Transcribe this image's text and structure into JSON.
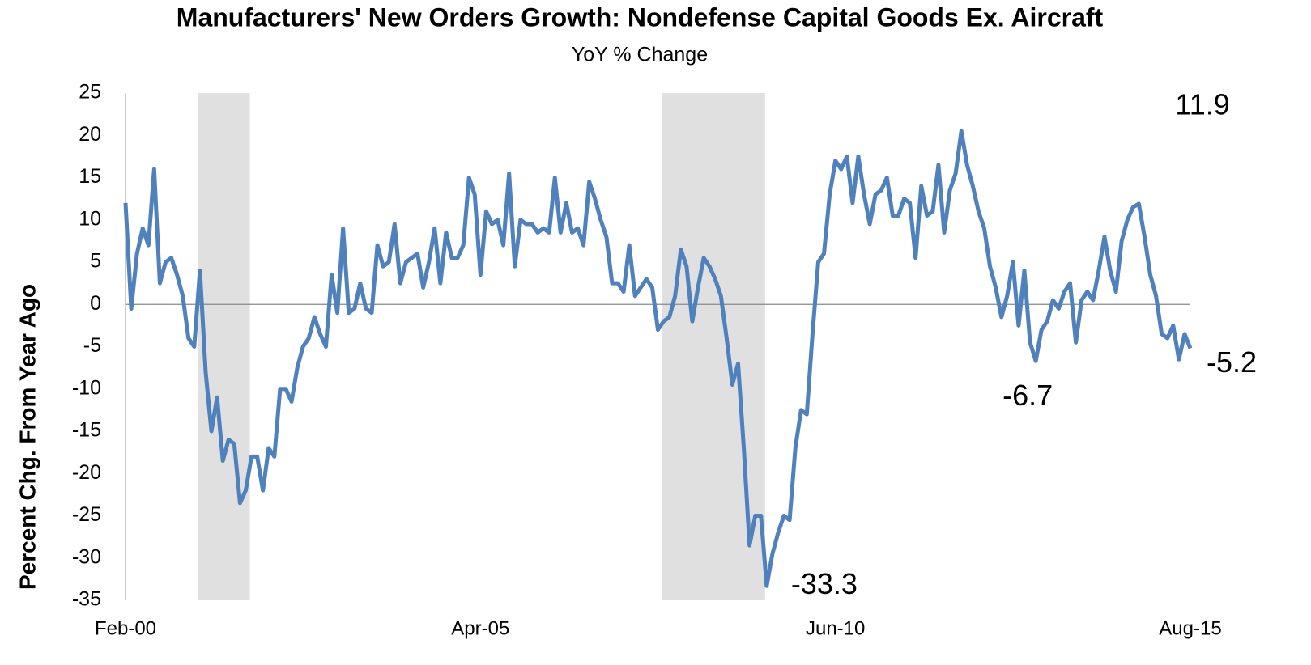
{
  "chart_data": {
    "type": "line",
    "title": "Manufacturers' New Orders Growth: Nondefense Capital Goods Ex. Aircraft",
    "subtitle": "YoY % Change",
    "y_label": "Percent Chg. From Year Ago",
    "categories": [
      "Feb-00",
      null,
      null,
      null,
      null,
      null,
      null,
      null,
      null,
      null,
      null,
      null,
      null,
      null,
      null,
      null,
      null,
      null,
      null,
      null,
      null,
      null,
      null,
      null,
      null,
      null,
      null,
      null,
      null,
      null,
      null,
      null,
      null,
      null,
      null,
      null,
      null,
      null,
      null,
      null,
      null,
      null,
      null,
      null,
      null,
      null,
      null,
      null,
      null,
      null,
      null,
      null,
      null,
      null,
      null,
      null,
      null,
      null,
      null,
      null,
      null,
      null,
      "Apr-05",
      null,
      null,
      null,
      null,
      null,
      null,
      null,
      null,
      null,
      null,
      null,
      null,
      null,
      null,
      null,
      null,
      null,
      null,
      null,
      null,
      null,
      null,
      null,
      null,
      null,
      null,
      null,
      null,
      null,
      null,
      null,
      null,
      null,
      null,
      null,
      null,
      null,
      null,
      null,
      null,
      null,
      null,
      null,
      null,
      null,
      null,
      null,
      null,
      null,
      null,
      null,
      null,
      null,
      null,
      null,
      null,
      null,
      null,
      null,
      null,
      null,
      "Jun-10",
      null,
      null,
      null,
      null,
      null,
      null,
      null,
      null,
      null,
      null,
      null,
      null,
      null,
      null,
      null,
      null,
      null,
      null,
      null,
      null,
      null,
      null,
      null,
      null,
      null,
      null,
      null,
      null,
      null,
      null,
      null,
      null,
      null,
      null,
      null,
      null,
      null,
      null,
      null,
      null,
      null,
      null,
      null,
      null,
      null,
      null,
      null,
      null,
      null,
      null,
      null,
      null,
      null,
      null,
      null,
      null,
      null,
      null,
      null,
      null,
      null,
      "Aug-15"
    ],
    "series": [
      {
        "name": "Nondefense Capital Goods Ex. Aircraft",
        "color": "#4f81bd",
        "values": [
          12,
          -0.5,
          6,
          9,
          7,
          16,
          2.5,
          5,
          5.5,
          3.5,
          1,
          -4,
          -5,
          4,
          -8,
          -15,
          -11,
          -18.5,
          -16,
          -16.5,
          -23.5,
          -22,
          -18,
          -18,
          -22,
          -17,
          -18,
          -10,
          -10,
          -11.5,
          -7.5,
          -5,
          -4,
          -1.5,
          -3.5,
          -5,
          3.5,
          -1,
          9,
          -1,
          -0.5,
          2.5,
          -0.5,
          -1,
          7,
          4.5,
          5,
          9.5,
          2.5,
          5,
          5.5,
          6,
          2,
          5,
          9,
          2.5,
          8.5,
          5.5,
          5.5,
          7,
          15,
          13,
          3.5,
          11,
          9.5,
          10,
          7,
          15.5,
          4.5,
          10,
          9.5,
          9.5,
          8.5,
          9,
          8.5,
          15,
          8.5,
          12,
          8.5,
          9,
          7,
          14.5,
          12.5,
          10,
          8,
          2.5,
          2.5,
          1.5,
          7,
          1,
          2,
          3,
          2,
          -3,
          -2,
          -1.5,
          1,
          6.5,
          4.5,
          -2,
          2,
          5.5,
          4.5,
          3,
          1,
          -4,
          -9.5,
          -7,
          -17,
          -28.5,
          -25,
          -25,
          -33.3,
          -29.5,
          -27,
          -25,
          -25.5,
          -17,
          -12.5,
          -13,
          -3.5,
          5,
          6,
          13,
          17,
          16,
          17.5,
          12,
          17.5,
          13,
          9.5,
          13,
          13.5,
          15,
          10.5,
          10.5,
          12.5,
          12,
          5.5,
          14,
          10.5,
          11,
          16.5,
          8.5,
          13.5,
          15.5,
          20.5,
          16.5,
          14,
          11,
          9,
          4.5,
          2,
          -1.5,
          1,
          5,
          -2.5,
          4,
          -4.5,
          -6.7,
          -3,
          -2,
          0.5,
          -0.5,
          1.5,
          2.5,
          -4.5,
          0.5,
          1.5,
          0.5,
          4,
          8,
          4,
          1.5,
          7.5,
          10,
          11.5,
          11.9,
          8,
          3.5,
          1,
          -3.5,
          -4,
          -2.5,
          -6.5,
          -3.5,
          -5.2
        ],
        "value_labels": [
          null,
          null,
          null,
          null,
          null,
          null,
          null,
          null,
          null,
          null,
          null,
          null,
          null,
          null,
          null,
          null,
          null,
          null,
          null,
          null,
          null,
          null,
          null,
          null,
          null,
          null,
          null,
          null,
          null,
          null,
          null,
          null,
          null,
          null,
          null,
          null,
          null,
          null,
          null,
          null,
          null,
          null,
          null,
          null,
          null,
          null,
          null,
          null,
          null,
          null,
          null,
          null,
          null,
          null,
          null,
          null,
          null,
          null,
          null,
          null,
          null,
          null,
          null,
          null,
          null,
          null,
          null,
          null,
          null,
          null,
          null,
          null,
          null,
          null,
          null,
          null,
          null,
          null,
          null,
          null,
          null,
          null,
          null,
          null,
          null,
          null,
          null,
          null,
          null,
          null,
          null,
          null,
          null,
          null,
          null,
          null,
          null,
          null,
          null,
          null,
          null,
          null,
          null,
          null,
          null,
          null,
          null,
          null,
          null,
          null,
          null,
          null,
          "-33.3",
          null,
          null,
          null,
          null,
          null,
          null,
          null,
          null,
          null,
          null,
          null,
          null,
          null,
          null,
          null,
          null,
          null,
          null,
          null,
          null,
          null,
          null,
          null,
          null,
          null,
          null,
          null,
          null,
          null,
          null,
          null,
          null,
          null,
          null,
          null,
          null,
          null,
          null,
          null,
          null,
          null,
          null,
          null,
          null,
          null,
          null,
          "-6.7",
          null,
          null,
          null,
          null,
          null,
          null,
          null,
          null,
          null,
          null,
          null,
          null,
          null,
          null,
          null,
          null,
          null,
          "11.9",
          null,
          null,
          null,
          null,
          null,
          null,
          null,
          null,
          "-5.2"
        ]
      }
    ],
    "shaded_periods": [
      {
        "start": 13,
        "end": 22
      },
      {
        "start": 94,
        "end": 112
      }
    ],
    "shade_color": "#e0e0e0",
    "ylim": [
      -35,
      25
    ],
    "yticks": [
      -35,
      -30,
      -25,
      -20,
      -15,
      -10,
      -5,
      0,
      5,
      10,
      15,
      20,
      25
    ],
    "grid": false
  }
}
